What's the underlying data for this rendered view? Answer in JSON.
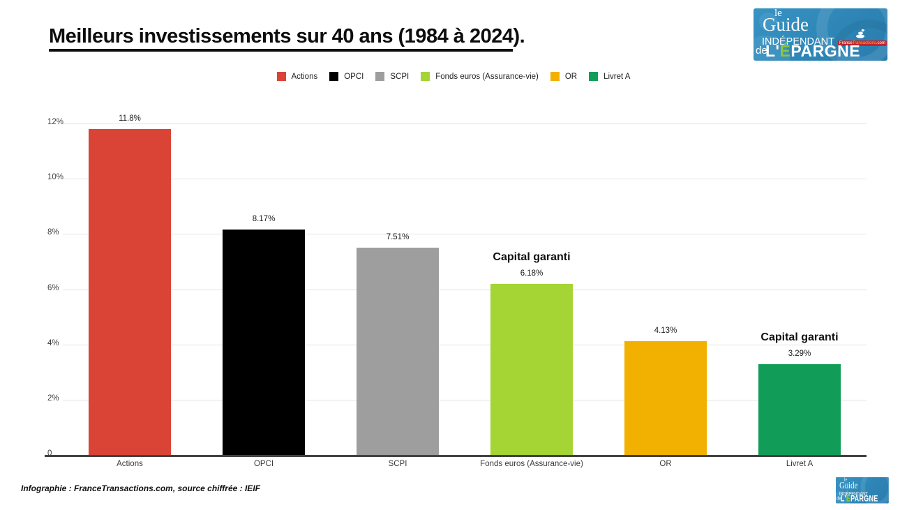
{
  "page": {
    "title": "Meilleurs investissements sur 40 ans (1984 à 2024",
    "title_suffix": ").",
    "footer": "Infographie : FranceTransactions.com, source chiffrée : IEIF"
  },
  "logo": {
    "word_le": "le",
    "word_guide": "Guide",
    "word_independant": "INDÉPENDANT",
    "word_de": "de",
    "epargne_prefix": "L'",
    "epargne_accent": "É",
    "epargne_rest": "PARGNE",
    "badge_france": "France",
    "badge_transactions": "Transactions",
    "badge_dotcom": ".com",
    "bg_color": "#2e86b6",
    "accent_green": "#8dc63f",
    "badge_red": "#c0272d"
  },
  "chart_data": {
    "type": "bar",
    "title": "Meilleurs investissements sur 40 ans (1984 à 2024)",
    "categories": [
      "Actions",
      "OPCI",
      "SCPI",
      "Fonds euros (Assurance-vie)",
      "OR",
      "Livret A"
    ],
    "values": [
      11.8,
      8.17,
      7.51,
      6.18,
      4.13,
      3.29
    ],
    "value_labels": [
      "11.8%",
      "8.17%",
      "7.51%",
      "6.18%",
      "4.13%",
      "3.29%"
    ],
    "colors": [
      "#da4437",
      "#000000",
      "#9e9e9e",
      "#a5d435",
      "#f2b100",
      "#119d58"
    ],
    "xlabel": "",
    "ylabel": "",
    "ylim": [
      0,
      12
    ],
    "ytick_step": 2,
    "ytick_labels": [
      "0",
      "2%",
      "4%",
      "6%",
      "8%",
      "10%",
      "12%"
    ],
    "grid": true,
    "legend_position": "top",
    "annotations": [
      {
        "category_index": 3,
        "text": "Capital garanti"
      },
      {
        "category_index": 5,
        "text": "Capital garanti"
      }
    ]
  }
}
